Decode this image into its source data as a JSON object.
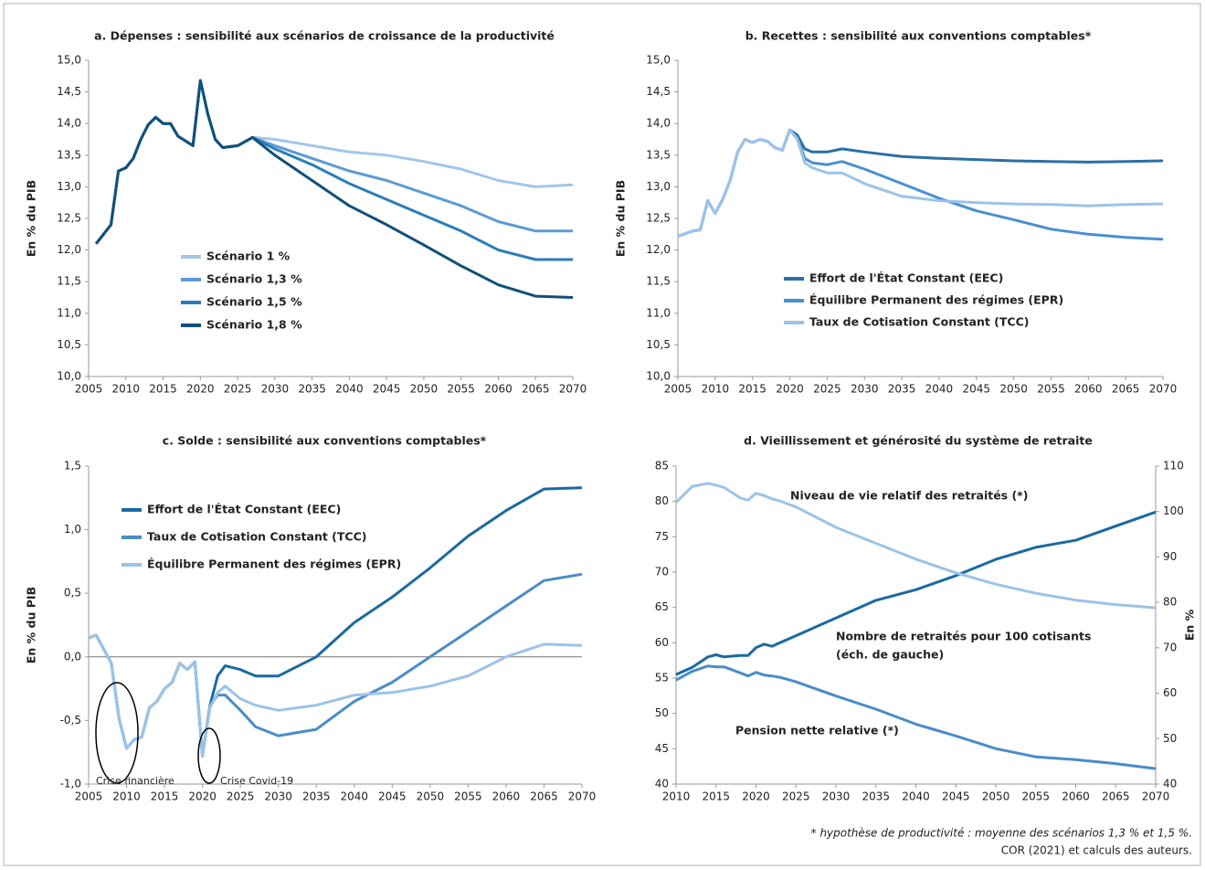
{
  "chart_data": [
    {
      "type": "line",
      "title": "a. Dépenses : sensibilité aux scénarios de croissance de la productivité",
      "y_label": "En % du PIB",
      "legend": true,
      "x": [
        2006,
        2008,
        2009,
        2010,
        2011,
        2012,
        2013,
        2014,
        2015,
        2016,
        2017,
        2019,
        2020,
        2021,
        2022,
        2023,
        2025,
        2027,
        2030,
        2035,
        2040,
        2045,
        2050,
        2055,
        2060,
        2065,
        2070
      ],
      "xlim": [
        2005,
        2070
      ],
      "xticks": [
        2005,
        2010,
        2015,
        2020,
        2025,
        2030,
        2035,
        2040,
        2045,
        2050,
        2055,
        2060,
        2065,
        2070
      ],
      "ylim": [
        10,
        15
      ],
      "yticks": [
        {
          "value": 10,
          "label": "10,0"
        },
        {
          "value": 10.5,
          "label": "10,5"
        },
        {
          "value": 11,
          "label": "11,0"
        },
        {
          "value": 11.5,
          "label": "11,5"
        },
        {
          "value": 12,
          "label": "12,0"
        },
        {
          "value": 12.5,
          "label": "12,5"
        },
        {
          "value": 13,
          "label": "13,0"
        },
        {
          "value": 13.5,
          "label": "13,5"
        },
        {
          "value": 14,
          "label": "14,0"
        },
        {
          "value": 14.5,
          "label": "14,5"
        },
        {
          "value": 15,
          "label": "15,0"
        }
      ],
      "series": [
        {
          "name": "Scénario 1 %",
          "color": "#a3c6e8",
          "values": [
            12.1,
            12.4,
            13.25,
            13.3,
            13.45,
            13.75,
            13.98,
            14.1,
            14.0,
            14.0,
            13.8,
            13.65,
            14.68,
            14.15,
            13.75,
            13.62,
            13.65,
            13.78,
            13.75,
            13.65,
            13.55,
            13.5,
            13.4,
            13.28,
            13.1,
            13.0,
            13.03
          ]
        },
        {
          "name": "Scénario 1,3 %",
          "color": "#5b9bd5",
          "values": [
            12.1,
            12.4,
            13.25,
            13.3,
            13.45,
            13.75,
            13.98,
            14.1,
            14.0,
            14.0,
            13.8,
            13.65,
            14.68,
            14.15,
            13.75,
            13.62,
            13.65,
            13.78,
            13.65,
            13.45,
            13.25,
            13.1,
            12.9,
            12.7,
            12.45,
            12.3,
            12.3
          ]
        },
        {
          "name": "Scénario 1,5 %",
          "color": "#2a7db8",
          "values": [
            12.1,
            12.4,
            13.25,
            13.3,
            13.45,
            13.75,
            13.98,
            14.1,
            14.0,
            14.0,
            13.8,
            13.65,
            14.68,
            14.15,
            13.75,
            13.62,
            13.65,
            13.78,
            13.6,
            13.35,
            13.05,
            12.8,
            12.55,
            12.3,
            12.0,
            11.85,
            11.85
          ]
        },
        {
          "name": "Scénario 1,8 %",
          "color": "#11507a",
          "values": [
            12.1,
            12.4,
            13.25,
            13.3,
            13.45,
            13.75,
            13.98,
            14.1,
            14.0,
            14.0,
            13.8,
            13.65,
            14.68,
            14.15,
            13.75,
            13.62,
            13.65,
            13.78,
            13.5,
            13.1,
            12.7,
            12.4,
            12.08,
            11.75,
            11.45,
            11.27,
            11.25
          ]
        }
      ]
    },
    {
      "type": "line",
      "title": "b. Recettes : sensibilité aux conventions comptables*",
      "y_label": "En % du PIB",
      "legend": true,
      "x": [
        2005,
        2007,
        2008,
        2009,
        2010,
        2011,
        2012,
        2013,
        2014,
        2015,
        2016,
        2017,
        2018,
        2019,
        2020,
        2021,
        2022,
        2023,
        2025,
        2027,
        2030,
        2035,
        2040,
        2045,
        2050,
        2055,
        2060,
        2065,
        2070
      ],
      "xlim": [
        2005,
        2070
      ],
      "xticks": [
        2005,
        2010,
        2015,
        2020,
        2025,
        2030,
        2035,
        2040,
        2045,
        2050,
        2055,
        2060,
        2065,
        2070
      ],
      "ylim": [
        10,
        15
      ],
      "yticks": [
        {
          "value": 10,
          "label": "10,0"
        },
        {
          "value": 10.5,
          "label": "10,5"
        },
        {
          "value": 11,
          "label": "11,0"
        },
        {
          "value": 11.5,
          "label": "11,5"
        },
        {
          "value": 12,
          "label": "12,0"
        },
        {
          "value": 12.5,
          "label": "12,5"
        },
        {
          "value": 13,
          "label": "13,0"
        },
        {
          "value": 13.5,
          "label": "13,5"
        },
        {
          "value": 14,
          "label": "14,0"
        },
        {
          "value": 14.5,
          "label": "14,5"
        },
        {
          "value": 15,
          "label": "15,0"
        }
      ],
      "series": [
        {
          "name": "Effort de l'État Constant (EEC)",
          "color": "#2a6fa8",
          "values": [
            12.22,
            12.3,
            12.32,
            12.78,
            12.58,
            12.8,
            13.1,
            13.55,
            13.75,
            13.7,
            13.75,
            13.72,
            13.62,
            13.58,
            13.9,
            13.82,
            13.6,
            13.55,
            13.55,
            13.6,
            13.55,
            13.48,
            13.45,
            13.43,
            13.41,
            13.4,
            13.39,
            13.4,
            13.41
          ]
        },
        {
          "name": "Équilibre Permanent des régimes (EPR)",
          "color": "#4a90d0",
          "values": [
            12.22,
            12.3,
            12.32,
            12.78,
            12.58,
            12.8,
            13.1,
            13.55,
            13.75,
            13.7,
            13.75,
            13.72,
            13.62,
            13.58,
            13.9,
            13.78,
            13.45,
            13.38,
            13.35,
            13.4,
            13.28,
            13.05,
            12.82,
            12.62,
            12.48,
            12.33,
            12.25,
            12.2,
            12.17
          ]
        },
        {
          "name": "Taux de Cotisation Constant (TCC)",
          "color": "#9cc3e8",
          "values": [
            12.22,
            12.3,
            12.32,
            12.78,
            12.58,
            12.8,
            13.1,
            13.55,
            13.75,
            13.7,
            13.75,
            13.72,
            13.62,
            13.58,
            13.9,
            13.75,
            13.38,
            13.3,
            13.22,
            13.22,
            13.05,
            12.85,
            12.78,
            12.75,
            12.73,
            12.72,
            12.7,
            12.72,
            12.73
          ]
        }
      ]
    },
    {
      "type": "line",
      "title": "c. Solde : sensibilité aux conventions comptables*",
      "y_label": "En % du PIB",
      "legend": true,
      "zero_line": true,
      "x": [
        2005,
        2006,
        2008,
        2009,
        2010,
        2011,
        2012,
        2013,
        2014,
        2015,
        2016,
        2017,
        2018,
        2019,
        2020,
        2021,
        2022,
        2023,
        2025,
        2027,
        2030,
        2035,
        2040,
        2045,
        2050,
        2055,
        2060,
        2065,
        2070
      ],
      "xlim": [
        2005,
        2070
      ],
      "xticks": [
        2005,
        2010,
        2015,
        2020,
        2025,
        2030,
        2035,
        2040,
        2045,
        2050,
        2055,
        2060,
        2065,
        2070
      ],
      "ylim": [
        -1,
        1.5
      ],
      "yticks": [
        {
          "value": -1,
          "label": "-1,0"
        },
        {
          "value": -0.5,
          "label": "-0,5"
        },
        {
          "value": 0,
          "label": "0,0"
        },
        {
          "value": 0.5,
          "label": "0,5"
        },
        {
          "value": 1,
          "label": "1,0"
        },
        {
          "value": 1.5,
          "label": "1,5"
        }
      ],
      "annotations": [
        "Crise financière",
        "Crise Covid-19"
      ],
      "series": [
        {
          "name": "Effort de l'État Constant (EEC)",
          "color": "#1a6aa0",
          "values": [
            0.15,
            0.17,
            -0.05,
            -0.48,
            -0.72,
            -0.65,
            -0.63,
            -0.4,
            -0.35,
            -0.25,
            -0.2,
            -0.05,
            -0.1,
            -0.04,
            -0.78,
            -0.38,
            -0.15,
            -0.07,
            -0.1,
            -0.15,
            -0.15,
            0.0,
            0.27,
            0.47,
            0.7,
            0.95,
            1.15,
            1.32,
            1.33
          ]
        },
        {
          "name": "Taux de Cotisation Constant (TCC)",
          "color": "#4a8cc8",
          "values": [
            0.15,
            0.17,
            -0.05,
            -0.48,
            -0.72,
            -0.65,
            -0.63,
            -0.4,
            -0.35,
            -0.25,
            -0.2,
            -0.05,
            -0.1,
            -0.04,
            -0.78,
            -0.38,
            -0.3,
            -0.3,
            -0.42,
            -0.55,
            -0.62,
            -0.57,
            -0.35,
            -0.2,
            0.0,
            0.2,
            0.4,
            0.6,
            0.65
          ]
        },
        {
          "name": "Équilibre Permanent des régimes (EPR)",
          "color": "#9cc3e8",
          "values": [
            0.15,
            0.17,
            -0.05,
            -0.48,
            -0.72,
            -0.65,
            -0.63,
            -0.4,
            -0.35,
            -0.25,
            -0.2,
            -0.05,
            -0.1,
            -0.04,
            -0.78,
            -0.4,
            -0.28,
            -0.23,
            -0.33,
            -0.38,
            -0.42,
            -0.38,
            -0.3,
            -0.28,
            -0.23,
            -0.15,
            0.0,
            0.1,
            0.09
          ]
        }
      ]
    },
    {
      "type": "line",
      "title": "d. Vieillissement et générosité du système de retraite",
      "y_label": "En %",
      "legend": false,
      "x": [
        2010,
        2012,
        2014,
        2015,
        2016,
        2018,
        2019,
        2020,
        2021,
        2022,
        2023,
        2025,
        2030,
        2035,
        2040,
        2045,
        2050,
        2055,
        2060,
        2065,
        2070
      ],
      "xlim": [
        2010,
        2070
      ],
      "xticks": [
        2010,
        2015,
        2020,
        2025,
        2030,
        2035,
        2040,
        2045,
        2050,
        2055,
        2060,
        2065,
        2070
      ],
      "ylim": [
        40,
        85
      ],
      "yticks": [
        40,
        45,
        50,
        55,
        60,
        65,
        70,
        75,
        80,
        85
      ],
      "y2lim": [
        40,
        110
      ],
      "y2ticks": [
        40,
        50,
        60,
        70,
        80,
        90,
        100,
        110
      ],
      "annotations": [
        "(éch. de gauche)"
      ],
      "series": [
        {
          "name": "Nombre de retraités pour 100 cotisants",
          "color": "#1a6aa0",
          "values": [
            55.5,
            56.5,
            58,
            58.3,
            58,
            58.2,
            58.2,
            59.3,
            59.8,
            59.5,
            60,
            61,
            63.5,
            66,
            67.5,
            69.5,
            71.8,
            73.5,
            74.5,
            76.5,
            78.5
          ]
        },
        {
          "name": "Niveau de vie relatif des retraités (*)",
          "color": "#9cc3e8",
          "axis": "y2",
          "values": [
            102,
            105.5,
            106.2,
            105.8,
            105.3,
            103,
            102.5,
            104,
            103.5,
            102.8,
            102.3,
            101,
            96.5,
            93,
            89.5,
            86.5,
            84,
            82,
            80.5,
            79.5,
            78.8
          ]
        },
        {
          "name": "Pension nette relative (*)",
          "color": "#4a8cc8",
          "axis": "y2",
          "values": [
            62.9,
            64.8,
            66,
            65.8,
            65.8,
            64.5,
            63.8,
            64.6,
            64,
            63.8,
            63.5,
            62.5,
            59.4,
            56.5,
            53.2,
            50.6,
            47.8,
            46,
            45.4,
            44.5,
            43.4
          ]
        }
      ]
    }
  ],
  "footnote": "* hypothèse de productivité : moyenne des scénarios 1,3 % et 1,5 %.",
  "source": "COR (2021) et calculs des auteurs."
}
